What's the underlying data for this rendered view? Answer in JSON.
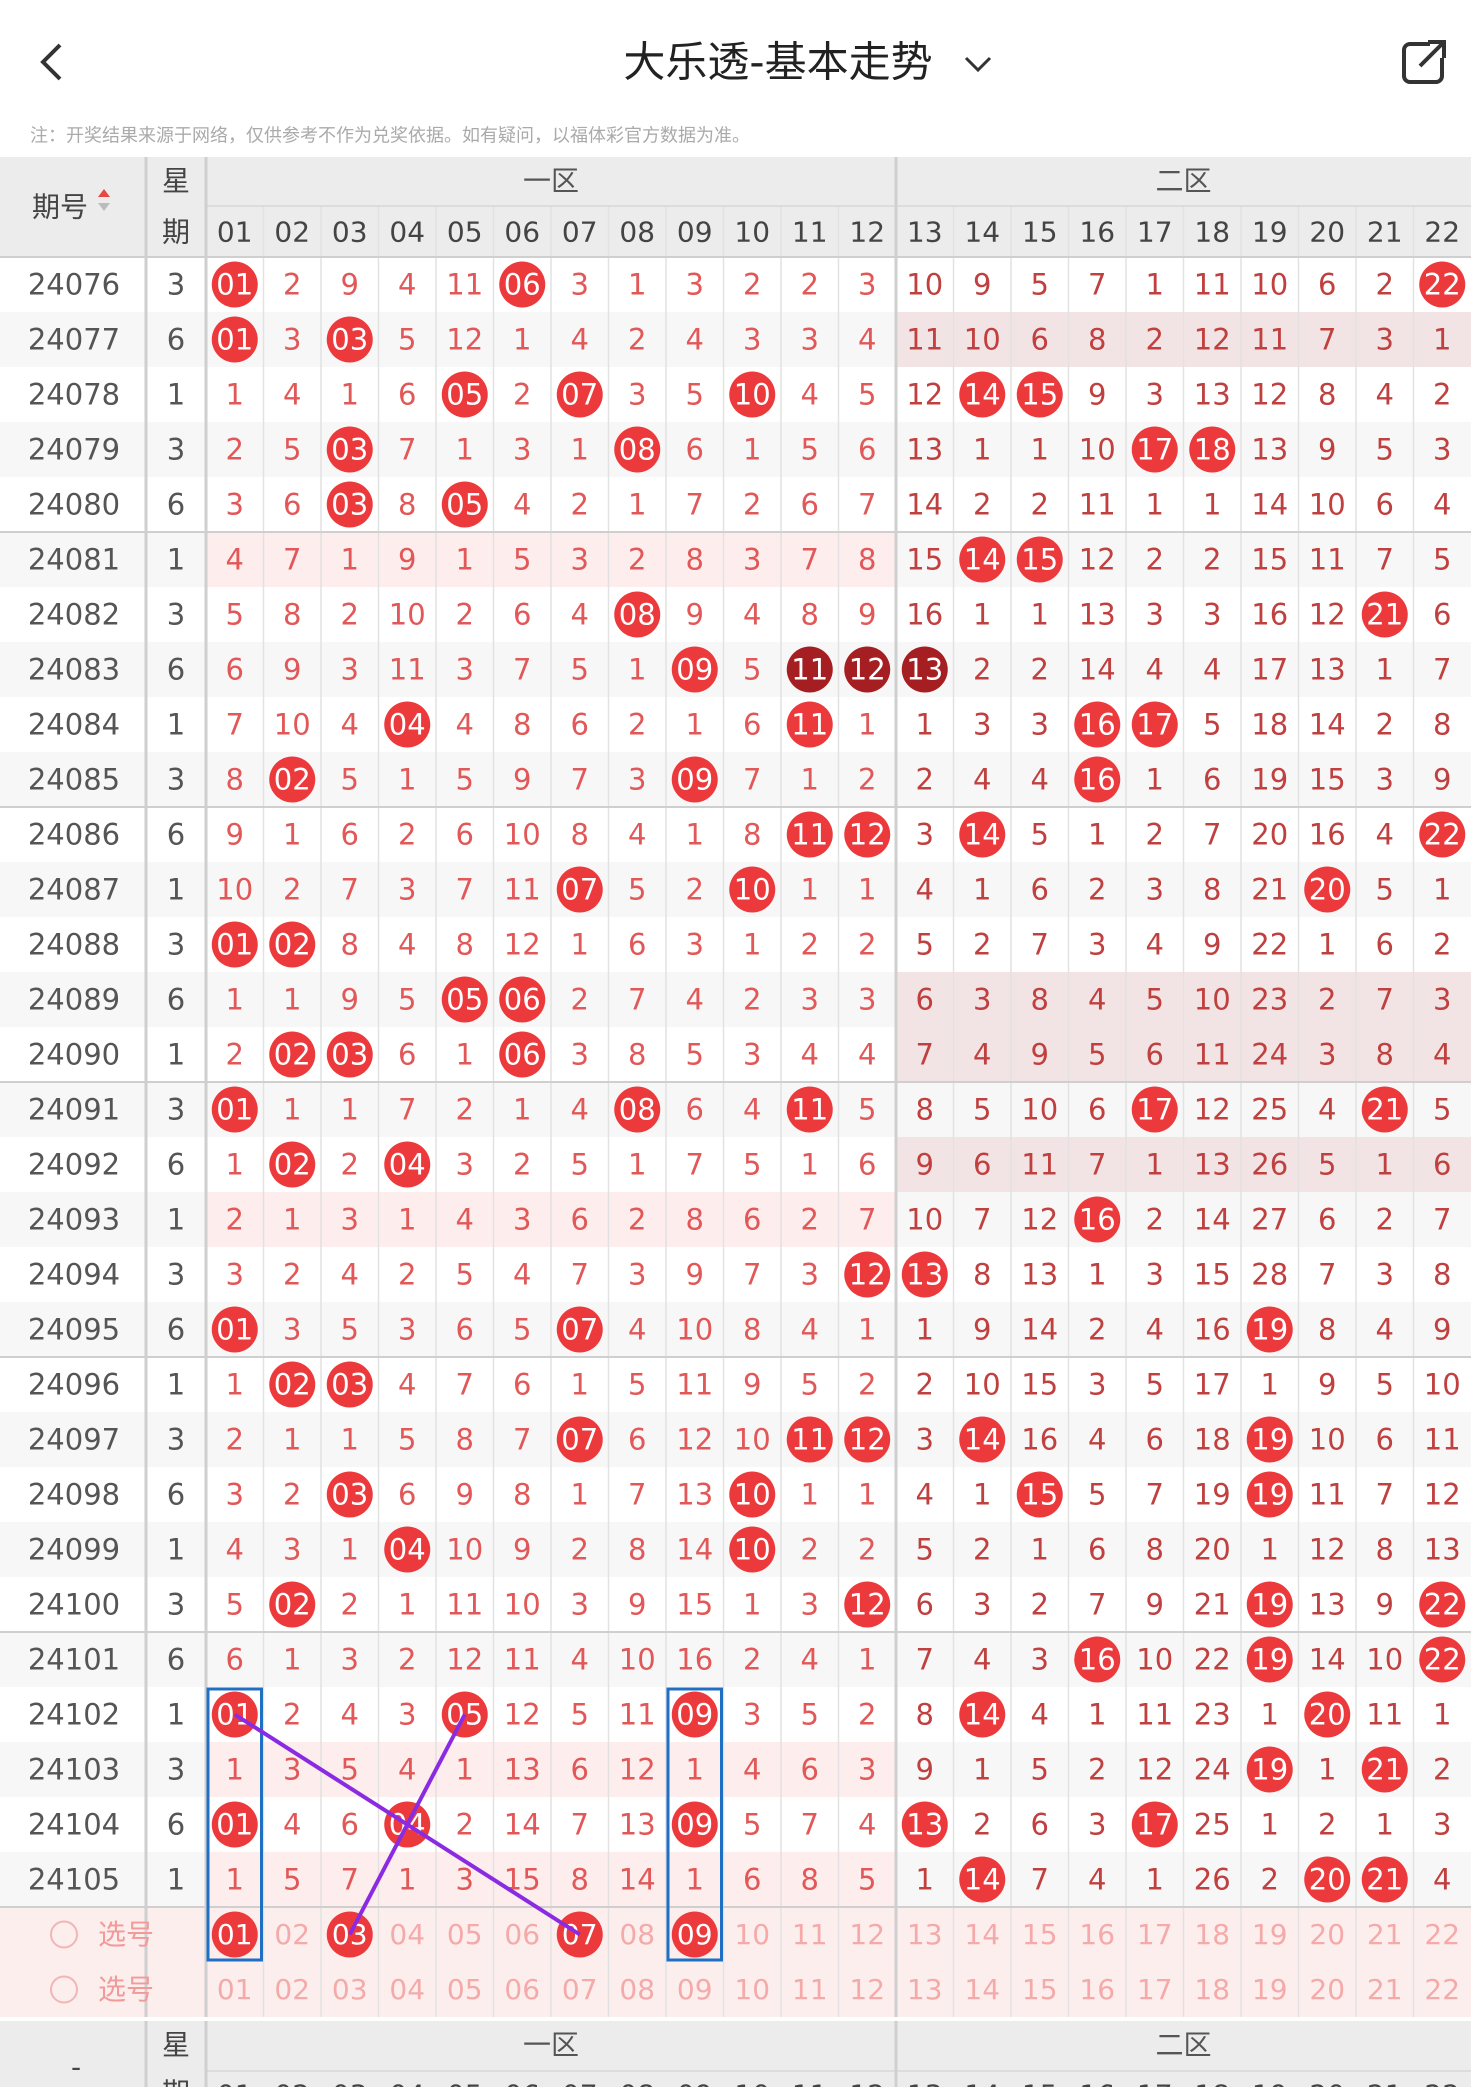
{
  "header": {
    "title": "大乐透-基本走势",
    "note": "注：开奖结果来源于网络，仅供参考不作为兑奖依据。如有疑问，以福体彩官方数据为准。"
  },
  "table": {
    "issue_header": "期号",
    "week_header": [
      "星",
      "期"
    ],
    "zone1": "一区",
    "zone2": "二区",
    "columns": [
      "01",
      "02",
      "03",
      "04",
      "05",
      "06",
      "07",
      "08",
      "09",
      "10",
      "11",
      "12",
      "13",
      "14",
      "15",
      "16",
      "17",
      "18",
      "19",
      "20",
      "21",
      "22"
    ],
    "rows": [
      {
        "issue": "24076",
        "week": "3",
        "cells": [
          "01",
          "2",
          "9",
          "4",
          "11",
          "06",
          "3",
          "1",
          "3",
          "2",
          "2",
          "3",
          "10",
          "9",
          "5",
          "7",
          "1",
          "11",
          "10",
          "6",
          "2",
          "22"
        ],
        "hits": [
          0,
          5,
          21
        ]
      },
      {
        "issue": "24077",
        "week": "6",
        "cells": [
          "01",
          "3",
          "03",
          "5",
          "12",
          "1",
          "4",
          "2",
          "4",
          "3",
          "3",
          "4",
          "11",
          "10",
          "6",
          "8",
          "2",
          "12",
          "11",
          "7",
          "3",
          "1"
        ],
        "hits": [
          0,
          2
        ],
        "band": 2
      },
      {
        "issue": "24078",
        "week": "1",
        "cells": [
          "1",
          "4",
          "1",
          "6",
          "05",
          "2",
          "07",
          "3",
          "5",
          "10",
          "4",
          "5",
          "12",
          "14",
          "15",
          "9",
          "3",
          "13",
          "12",
          "8",
          "4",
          "2"
        ],
        "hits": [
          4,
          6,
          9,
          13,
          14
        ]
      },
      {
        "issue": "24079",
        "week": "3",
        "cells": [
          "2",
          "5",
          "03",
          "7",
          "1",
          "3",
          "1",
          "08",
          "6",
          "1",
          "5",
          "6",
          "13",
          "1",
          "1",
          "10",
          "17",
          "18",
          "13",
          "9",
          "5",
          "3"
        ],
        "hits": [
          2,
          7,
          16,
          17
        ]
      },
      {
        "issue": "24080",
        "week": "6",
        "cells": [
          "3",
          "6",
          "03",
          "8",
          "05",
          "4",
          "2",
          "1",
          "7",
          "2",
          "6",
          "7",
          "14",
          "2",
          "2",
          "11",
          "1",
          "1",
          "14",
          "10",
          "6",
          "4"
        ],
        "hits": [
          2,
          4
        ]
      },
      {
        "issue": "24081",
        "week": "1",
        "cells": [
          "4",
          "7",
          "1",
          "9",
          "1",
          "5",
          "3",
          "2",
          "8",
          "3",
          "7",
          "8",
          "15",
          "14",
          "15",
          "12",
          "2",
          "2",
          "15",
          "11",
          "7",
          "5"
        ],
        "hits": [
          13,
          14
        ],
        "band": 1
      },
      {
        "issue": "24082",
        "week": "3",
        "cells": [
          "5",
          "8",
          "2",
          "10",
          "2",
          "6",
          "4",
          "08",
          "9",
          "4",
          "8",
          "9",
          "16",
          "1",
          "1",
          "13",
          "3",
          "3",
          "16",
          "12",
          "21",
          "6"
        ],
        "hits": [
          7,
          20
        ]
      },
      {
        "issue": "24083",
        "week": "6",
        "cells": [
          "6",
          "9",
          "3",
          "11",
          "3",
          "7",
          "5",
          "1",
          "09",
          "5",
          "11",
          "12",
          "13",
          "2",
          "2",
          "14",
          "4",
          "4",
          "17",
          "13",
          "1",
          "7"
        ],
        "hits": [
          8
        ],
        "dark_hits": [
          10,
          11,
          12
        ]
      },
      {
        "issue": "24084",
        "week": "1",
        "cells": [
          "7",
          "10",
          "4",
          "04",
          "4",
          "8",
          "6",
          "2",
          "1",
          "6",
          "11",
          "1",
          "1",
          "3",
          "3",
          "16",
          "17",
          "5",
          "18",
          "14",
          "2",
          "8"
        ],
        "hits": [
          3,
          10,
          15,
          16
        ]
      },
      {
        "issue": "24085",
        "week": "3",
        "cells": [
          "8",
          "02",
          "5",
          "1",
          "5",
          "9",
          "7",
          "3",
          "09",
          "7",
          "1",
          "2",
          "2",
          "4",
          "4",
          "16",
          "1",
          "6",
          "19",
          "15",
          "3",
          "9"
        ],
        "hits": [
          1,
          8,
          15
        ]
      },
      {
        "issue": "24086",
        "week": "6",
        "cells": [
          "9",
          "1",
          "6",
          "2",
          "6",
          "10",
          "8",
          "4",
          "1",
          "8",
          "11",
          "12",
          "3",
          "14",
          "5",
          "1",
          "2",
          "7",
          "20",
          "16",
          "4",
          "22"
        ],
        "hits": [
          10,
          11,
          13,
          21
        ]
      },
      {
        "issue": "24087",
        "week": "1",
        "cells": [
          "10",
          "2",
          "7",
          "3",
          "7",
          "11",
          "07",
          "5",
          "2",
          "10",
          "1",
          "1",
          "4",
          "1",
          "6",
          "2",
          "3",
          "8",
          "21",
          "20",
          "5",
          "1"
        ],
        "hits": [
          6,
          9,
          19
        ]
      },
      {
        "issue": "24088",
        "week": "3",
        "cells": [
          "01",
          "02",
          "8",
          "4",
          "8",
          "12",
          "1",
          "6",
          "3",
          "1",
          "2",
          "2",
          "5",
          "2",
          "7",
          "3",
          "4",
          "9",
          "22",
          "1",
          "6",
          "2"
        ],
        "hits": [
          0,
          1
        ]
      },
      {
        "issue": "24089",
        "week": "6",
        "cells": [
          "1",
          "1",
          "9",
          "5",
          "05",
          "06",
          "2",
          "7",
          "4",
          "2",
          "3",
          "3",
          "6",
          "3",
          "8",
          "4",
          "5",
          "10",
          "23",
          "2",
          "7",
          "3"
        ],
        "hits": [
          4,
          5
        ],
        "band": 2
      },
      {
        "issue": "24090",
        "week": "1",
        "cells": [
          "2",
          "02",
          "03",
          "6",
          "1",
          "06",
          "3",
          "8",
          "5",
          "3",
          "4",
          "4",
          "7",
          "4",
          "9",
          "5",
          "6",
          "11",
          "24",
          "3",
          "8",
          "4"
        ],
        "hits": [
          1,
          2,
          5
        ],
        "band": 2
      },
      {
        "issue": "24091",
        "week": "3",
        "cells": [
          "01",
          "1",
          "1",
          "7",
          "2",
          "1",
          "4",
          "08",
          "6",
          "4",
          "11",
          "5",
          "8",
          "5",
          "10",
          "6",
          "17",
          "12",
          "25",
          "4",
          "21",
          "5"
        ],
        "hits": [
          0,
          7,
          10,
          16,
          20
        ]
      },
      {
        "issue": "24092",
        "week": "6",
        "cells": [
          "1",
          "02",
          "2",
          "04",
          "3",
          "2",
          "5",
          "1",
          "7",
          "5",
          "1",
          "6",
          "9",
          "6",
          "11",
          "7",
          "1",
          "13",
          "26",
          "5",
          "1",
          "6"
        ],
        "hits": [
          1,
          3
        ],
        "band": 2
      },
      {
        "issue": "24093",
        "week": "1",
        "cells": [
          "2",
          "1",
          "3",
          "1",
          "4",
          "3",
          "6",
          "2",
          "8",
          "6",
          "2",
          "7",
          "10",
          "7",
          "12",
          "16",
          "2",
          "14",
          "27",
          "6",
          "2",
          "7"
        ],
        "hits": [
          15
        ],
        "band": 1
      },
      {
        "issue": "24094",
        "week": "3",
        "cells": [
          "3",
          "2",
          "4",
          "2",
          "5",
          "4",
          "7",
          "3",
          "9",
          "7",
          "3",
          "12",
          "13",
          "8",
          "13",
          "1",
          "3",
          "15",
          "28",
          "7",
          "3",
          "8"
        ],
        "hits": [
          11,
          12
        ]
      },
      {
        "issue": "24095",
        "week": "6",
        "cells": [
          "01",
          "3",
          "5",
          "3",
          "6",
          "5",
          "07",
          "4",
          "10",
          "8",
          "4",
          "1",
          "1",
          "9",
          "14",
          "2",
          "4",
          "16",
          "19",
          "8",
          "4",
          "9"
        ],
        "hits": [
          0,
          6,
          18
        ]
      },
      {
        "issue": "24096",
        "week": "1",
        "cells": [
          "1",
          "02",
          "03",
          "4",
          "7",
          "6",
          "1",
          "5",
          "11",
          "9",
          "5",
          "2",
          "2",
          "10",
          "15",
          "3",
          "5",
          "17",
          "1",
          "9",
          "5",
          "10"
        ],
        "hits": [
          1,
          2
        ]
      },
      {
        "issue": "24097",
        "week": "3",
        "cells": [
          "2",
          "1",
          "1",
          "5",
          "8",
          "7",
          "07",
          "6",
          "12",
          "10",
          "11",
          "12",
          "3",
          "14",
          "16",
          "4",
          "6",
          "18",
          "19",
          "10",
          "6",
          "11"
        ],
        "hits": [
          6,
          10,
          11,
          13,
          18
        ]
      },
      {
        "issue": "24098",
        "week": "6",
        "cells": [
          "3",
          "2",
          "03",
          "6",
          "9",
          "8",
          "1",
          "7",
          "13",
          "10",
          "1",
          "1",
          "4",
          "1",
          "15",
          "5",
          "7",
          "19",
          "19",
          "11",
          "7",
          "12"
        ],
        "hits": [
          2,
          9,
          14,
          18
        ]
      },
      {
        "issue": "24099",
        "week": "1",
        "cells": [
          "4",
          "3",
          "1",
          "04",
          "10",
          "9",
          "2",
          "8",
          "14",
          "10",
          "2",
          "2",
          "5",
          "2",
          "1",
          "6",
          "8",
          "20",
          "1",
          "12",
          "8",
          "13"
        ],
        "hits": [
          3,
          9
        ]
      },
      {
        "issue": "24100",
        "week": "3",
        "cells": [
          "5",
          "02",
          "2",
          "1",
          "11",
          "10",
          "3",
          "9",
          "15",
          "1",
          "3",
          "12",
          "6",
          "3",
          "2",
          "7",
          "9",
          "21",
          "19",
          "13",
          "9",
          "22"
        ],
        "hits": [
          1,
          11,
          18,
          21
        ]
      },
      {
        "issue": "24101",
        "week": "6",
        "cells": [
          "6",
          "1",
          "3",
          "2",
          "12",
          "11",
          "4",
          "10",
          "16",
          "2",
          "4",
          "1",
          "7",
          "4",
          "3",
          "16",
          "10",
          "22",
          "19",
          "14",
          "10",
          "22"
        ],
        "hits": [
          15,
          18,
          21
        ]
      },
      {
        "issue": "24102",
        "week": "1",
        "cells": [
          "01",
          "2",
          "4",
          "3",
          "05",
          "12",
          "5",
          "11",
          "09",
          "3",
          "5",
          "2",
          "8",
          "14",
          "4",
          "1",
          "11",
          "23",
          "1",
          "20",
          "11",
          "1"
        ],
        "hits": [
          0,
          4,
          8,
          13,
          19
        ]
      },
      {
        "issue": "24103",
        "week": "3",
        "cells": [
          "1",
          "3",
          "5",
          "4",
          "1",
          "13",
          "6",
          "12",
          "1",
          "4",
          "6",
          "3",
          "9",
          "1",
          "5",
          "2",
          "12",
          "24",
          "19",
          "1",
          "21",
          "2"
        ],
        "hits": [
          18,
          20
        ],
        "band": 1
      },
      {
        "issue": "24104",
        "week": "6",
        "cells": [
          "01",
          "4",
          "6",
          "04",
          "2",
          "14",
          "7",
          "13",
          "09",
          "5",
          "7",
          "4",
          "13",
          "2",
          "6",
          "3",
          "17",
          "25",
          "1",
          "2",
          "1",
          "3"
        ],
        "hits": [
          0,
          3,
          8,
          12,
          16
        ]
      },
      {
        "issue": "24105",
        "week": "1",
        "cells": [
          "1",
          "5",
          "7",
          "1",
          "3",
          "15",
          "8",
          "14",
          "1",
          "6",
          "8",
          "5",
          "1",
          "14",
          "7",
          "4",
          "1",
          "26",
          "2",
          "20",
          "21",
          "4"
        ],
        "hits": [
          13,
          19,
          20
        ],
        "band": 1
      }
    ]
  },
  "select": {
    "rows": [
      {
        "label": "选号",
        "selected": [
          0,
          2,
          6,
          8
        ]
      },
      {
        "label": "选号",
        "selected": []
      }
    ]
  },
  "footer": {
    "issue": "-",
    "week_header": [
      "星",
      "期"
    ],
    "zone1": "一区",
    "zone2": "二区"
  }
}
